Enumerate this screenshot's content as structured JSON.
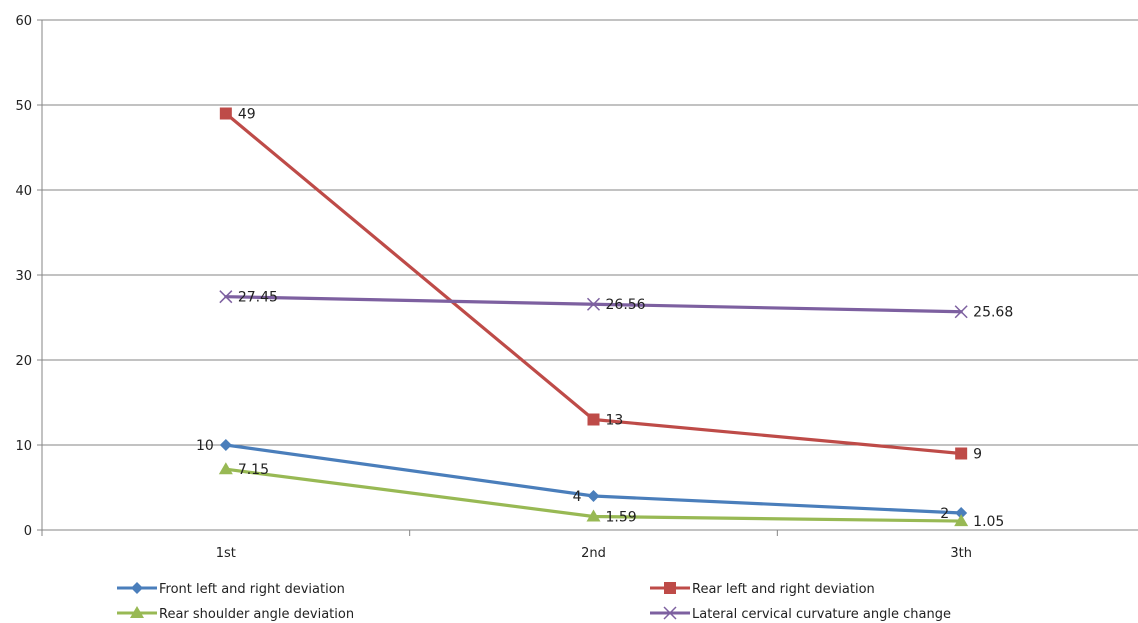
{
  "chart_data": {
    "type": "line",
    "title": "",
    "xlabel": "",
    "ylabel": "",
    "categories": [
      "1st",
      "2nd",
      "3th"
    ],
    "ylim": [
      0,
      60
    ],
    "yticks": [
      0,
      10,
      20,
      30,
      40,
      50,
      60
    ],
    "grid": "horizontal",
    "legend_position": "bottom",
    "series": [
      {
        "name": "Front left and right deviation",
        "values": [
          10,
          4,
          2
        ],
        "labels": [
          "10",
          "4",
          "2"
        ],
        "color": "#4a7ebb",
        "marker": "diamond",
        "label_side": "left"
      },
      {
        "name": "Rear left and right deviation",
        "values": [
          49,
          13,
          9
        ],
        "labels": [
          "49",
          "13",
          "9"
        ],
        "color": "#be4b48",
        "marker": "square",
        "label_side": "right"
      },
      {
        "name": "Rear shoulder angle deviation",
        "values": [
          7.15,
          1.59,
          1.05
        ],
        "labels": [
          "7.15",
          "1.59",
          "1.05"
        ],
        "color": "#98b954",
        "marker": "triangle",
        "label_side": "right"
      },
      {
        "name": "Lateral cervical curvature angle change",
        "values": [
          27.45,
          26.56,
          25.68
        ],
        "labels": [
          "27.45",
          "26.56",
          "25.68"
        ],
        "color": "#7d60a0",
        "marker": "x",
        "label_side": "right"
      }
    ]
  }
}
